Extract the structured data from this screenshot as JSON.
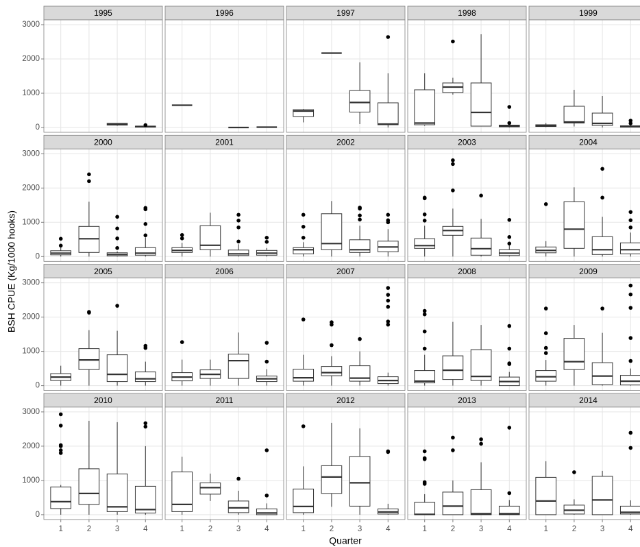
{
  "chart_data": {
    "type": "box",
    "ylabel": "BSH CPUE (Kg/1000 hooks)",
    "xlabel": "Quarter",
    "ylim": [
      -140,
      3140
    ],
    "yticks": [
      0,
      1000,
      2000,
      3000
    ],
    "xlim": [
      0.4,
      4.6
    ],
    "xticks": [
      1,
      2,
      3,
      4
    ],
    "grid": true,
    "color": "#333333",
    "panels": [
      {
        "title": "1995",
        "boxes": [
          {
            "x": 3,
            "low": 50,
            "q1": 70,
            "median": 100,
            "q3": 120,
            "high": 130
          },
          {
            "x": 4,
            "low": 0,
            "q1": 10,
            "median": 30,
            "q3": 40,
            "high": 50,
            "outliers": [
              70
            ]
          }
        ]
      },
      {
        "title": "1996",
        "boxes": [
          {
            "x": 1,
            "low": 650,
            "q1": 650,
            "median": 650,
            "q3": 650,
            "high": 650
          },
          {
            "x": 3,
            "low": 0,
            "q1": 0,
            "median": 0,
            "q3": 0,
            "high": 0
          },
          {
            "x": 4,
            "low": 10,
            "q1": 10,
            "median": 10,
            "q3": 10,
            "high": 10
          }
        ]
      },
      {
        "title": "1997",
        "boxes": [
          {
            "x": 1,
            "low": 150,
            "q1": 320,
            "median": 480,
            "q3": 520,
            "high": 540
          },
          {
            "x": 2,
            "low": 2170,
            "q1": 2170,
            "median": 2170,
            "q3": 2170,
            "high": 2170
          },
          {
            "x": 3,
            "low": 100,
            "q1": 450,
            "median": 730,
            "q3": 1080,
            "high": 1900
          },
          {
            "x": 4,
            "low": 0,
            "q1": 80,
            "median": 100,
            "q3": 720,
            "high": 1580,
            "outliers": [
              2640
            ]
          }
        ]
      },
      {
        "title": "1998",
        "boxes": [
          {
            "x": 1,
            "low": 50,
            "q1": 80,
            "median": 130,
            "q3": 1100,
            "high": 1580
          },
          {
            "x": 2,
            "low": 960,
            "q1": 1020,
            "median": 1180,
            "q3": 1300,
            "high": 1450,
            "outliers": [
              2510
            ]
          },
          {
            "x": 3,
            "low": 30,
            "q1": 40,
            "median": 440,
            "q3": 1300,
            "high": 2720
          },
          {
            "x": 4,
            "low": 0,
            "q1": 20,
            "median": 50,
            "q3": 70,
            "high": 100,
            "outliers": [
              130,
              600
            ]
          }
        ]
      },
      {
        "title": "1999",
        "boxes": [
          {
            "x": 1,
            "low": 10,
            "q1": 30,
            "median": 50,
            "q3": 80,
            "high": 130
          },
          {
            "x": 2,
            "low": 30,
            "q1": 130,
            "median": 160,
            "q3": 620,
            "high": 1100
          },
          {
            "x": 3,
            "low": 0,
            "q1": 60,
            "median": 120,
            "q3": 420,
            "high": 920
          },
          {
            "x": 4,
            "low": 0,
            "q1": 10,
            "median": 30,
            "q3": 50,
            "high": 80,
            "outliers": [
              120,
              200
            ]
          }
        ]
      },
      {
        "title": "2000",
        "boxes": [
          {
            "x": 1,
            "low": 0,
            "q1": 50,
            "median": 100,
            "q3": 170,
            "high": 300,
            "outliers": [
              320,
              520
            ]
          },
          {
            "x": 2,
            "low": 0,
            "q1": 120,
            "median": 520,
            "q3": 880,
            "high": 1600,
            "outliers": [
              2200,
              2400
            ]
          },
          {
            "x": 3,
            "low": 0,
            "q1": 20,
            "median": 60,
            "q3": 110,
            "high": 150,
            "outliers": [
              250,
              530,
              820,
              1160
            ]
          },
          {
            "x": 4,
            "low": 0,
            "q1": 40,
            "median": 100,
            "q3": 260,
            "high": 560,
            "outliers": [
              620,
              950,
              1380,
              1420
            ]
          }
        ]
      },
      {
        "title": "2001",
        "boxes": [
          {
            "x": 1,
            "low": 0,
            "q1": 120,
            "median": 180,
            "q3": 260,
            "high": 400,
            "outliers": [
              530,
              630
            ]
          },
          {
            "x": 2,
            "low": 0,
            "q1": 200,
            "median": 330,
            "q3": 900,
            "high": 1280
          },
          {
            "x": 3,
            "low": 0,
            "q1": 30,
            "median": 80,
            "q3": 190,
            "high": 360,
            "outliers": [
              440,
              850,
              1050,
              1220
            ]
          },
          {
            "x": 4,
            "low": 0,
            "q1": 40,
            "median": 100,
            "q3": 180,
            "high": 250,
            "outliers": [
              430,
              550
            ]
          }
        ]
      },
      {
        "title": "2002",
        "boxes": [
          {
            "x": 1,
            "low": 0,
            "q1": 80,
            "median": 200,
            "q3": 260,
            "high": 420,
            "outliers": [
              550,
              870,
              1220
            ]
          },
          {
            "x": 2,
            "low": 0,
            "q1": 200,
            "median": 380,
            "q3": 1250,
            "high": 1620
          },
          {
            "x": 3,
            "low": 0,
            "q1": 120,
            "median": 200,
            "q3": 490,
            "high": 900,
            "outliers": [
              1080,
              1200,
              1400,
              1430
            ]
          },
          {
            "x": 4,
            "low": 0,
            "q1": 140,
            "median": 280,
            "q3": 450,
            "high": 800,
            "outliers": [
              1000,
              1060,
              1220
            ]
          }
        ]
      },
      {
        "title": "2003",
        "boxes": [
          {
            "x": 1,
            "low": 0,
            "q1": 240,
            "median": 320,
            "q3": 520,
            "high": 900,
            "outliers": [
              1050,
              1230,
              1700,
              1720
            ]
          },
          {
            "x": 2,
            "low": 0,
            "q1": 620,
            "median": 760,
            "q3": 880,
            "high": 1400,
            "outliers": [
              1930,
              2700,
              2810
            ]
          },
          {
            "x": 3,
            "low": 0,
            "q1": 40,
            "median": 230,
            "q3": 540,
            "high": 1100,
            "outliers": [
              1780
            ]
          },
          {
            "x": 4,
            "low": 0,
            "q1": 30,
            "median": 100,
            "q3": 200,
            "high": 330,
            "outliers": [
              380,
              570,
              1070
            ]
          }
        ]
      },
      {
        "title": "2004",
        "boxes": [
          {
            "x": 1,
            "low": 0,
            "q1": 110,
            "median": 180,
            "q3": 280,
            "high": 450,
            "outliers": [
              1530
            ]
          },
          {
            "x": 2,
            "low": 0,
            "q1": 240,
            "median": 800,
            "q3": 1600,
            "high": 2020
          },
          {
            "x": 3,
            "low": 0,
            "q1": 60,
            "median": 200,
            "q3": 580,
            "high": 1160,
            "outliers": [
              1720,
              2560
            ]
          },
          {
            "x": 4,
            "low": 0,
            "q1": 80,
            "median": 200,
            "q3": 400,
            "high": 700,
            "outliers": [
              850,
              1060,
              1300
            ]
          }
        ]
      },
      {
        "title": "2005",
        "boxes": [
          {
            "x": 1,
            "low": 0,
            "q1": 150,
            "median": 250,
            "q3": 350,
            "high": 580
          },
          {
            "x": 2,
            "low": 0,
            "q1": 470,
            "median": 750,
            "q3": 1080,
            "high": 1620,
            "outliers": [
              2130,
              2150
            ]
          },
          {
            "x": 3,
            "low": 0,
            "q1": 120,
            "median": 330,
            "q3": 900,
            "high": 1600,
            "outliers": [
              2330
            ]
          },
          {
            "x": 4,
            "low": 0,
            "q1": 120,
            "median": 200,
            "q3": 400,
            "high": 700,
            "outliers": [
              1100,
              1160
            ]
          }
        ]
      },
      {
        "title": "2006",
        "boxes": [
          {
            "x": 1,
            "low": 0,
            "q1": 140,
            "median": 250,
            "q3": 380,
            "high": 760,
            "outliers": [
              1270
            ]
          },
          {
            "x": 2,
            "low": 0,
            "q1": 210,
            "median": 330,
            "q3": 460,
            "high": 760
          },
          {
            "x": 3,
            "low": 0,
            "q1": 210,
            "median": 730,
            "q3": 920,
            "high": 1550
          },
          {
            "x": 4,
            "low": 0,
            "q1": 120,
            "median": 200,
            "q3": 280,
            "high": 480,
            "outliers": [
              700,
              1250
            ]
          }
        ]
      },
      {
        "title": "2007",
        "boxes": [
          {
            "x": 1,
            "low": 0,
            "q1": 130,
            "median": 230,
            "q3": 480,
            "high": 900,
            "outliers": [
              1930
            ]
          },
          {
            "x": 2,
            "low": 0,
            "q1": 290,
            "median": 380,
            "q3": 560,
            "high": 860,
            "outliers": [
              1180,
              1780,
              1850
            ]
          },
          {
            "x": 3,
            "low": 0,
            "q1": 130,
            "median": 220,
            "q3": 580,
            "high": 1000,
            "outliers": [
              1360
            ]
          },
          {
            "x": 4,
            "low": 0,
            "q1": 60,
            "median": 150,
            "q3": 260,
            "high": 380,
            "outliers": [
              1780,
              1870,
              2300,
              2480,
              2650,
              2850
            ]
          }
        ]
      },
      {
        "title": "2008",
        "boxes": [
          {
            "x": 1,
            "low": 0,
            "q1": 80,
            "median": 130,
            "q3": 440,
            "high": 900,
            "outliers": [
              1080,
              1580,
              2080,
              2180
            ]
          },
          {
            "x": 2,
            "low": 0,
            "q1": 180,
            "median": 450,
            "q3": 870,
            "high": 1860
          },
          {
            "x": 3,
            "low": 0,
            "q1": 150,
            "median": 270,
            "q3": 1050,
            "high": 1770
          },
          {
            "x": 4,
            "low": 0,
            "q1": 0,
            "median": 120,
            "q3": 250,
            "high": 400,
            "outliers": [
              630,
              650,
              1080,
              1740
            ]
          }
        ]
      },
      {
        "title": "2009",
        "boxes": [
          {
            "x": 1,
            "low": 0,
            "q1": 130,
            "median": 260,
            "q3": 440,
            "high": 750,
            "outliers": [
              950,
              1100,
              1530,
              2250
            ]
          },
          {
            "x": 2,
            "low": 0,
            "q1": 470,
            "median": 700,
            "q3": 1380,
            "high": 1770
          },
          {
            "x": 3,
            "low": 0,
            "q1": 30,
            "median": 280,
            "q3": 670,
            "high": 1540,
            "outliers": [
              2250
            ]
          },
          {
            "x": 4,
            "low": 0,
            "q1": 20,
            "median": 130,
            "q3": 300,
            "high": 500,
            "outliers": [
              720,
              1390,
              2270,
              2660,
              2920
            ]
          }
        ]
      },
      {
        "title": "2010",
        "boxes": [
          {
            "x": 1,
            "low": 0,
            "q1": 180,
            "median": 380,
            "q3": 810,
            "high": 870,
            "outliers": [
              1800,
              1880,
              2000,
              2030,
              2600,
              2930
            ]
          },
          {
            "x": 2,
            "low": 0,
            "q1": 300,
            "median": 620,
            "q3": 1340,
            "high": 2740
          },
          {
            "x": 3,
            "low": 0,
            "q1": 90,
            "median": 230,
            "q3": 1190,
            "high": 2700
          },
          {
            "x": 4,
            "low": 0,
            "q1": 50,
            "median": 150,
            "q3": 830,
            "high": 2000,
            "outliers": [
              2570,
              2670
            ]
          }
        ]
      },
      {
        "title": "2011",
        "boxes": [
          {
            "x": 1,
            "low": 0,
            "q1": 90,
            "median": 300,
            "q3": 1250,
            "high": 1690
          },
          {
            "x": 2,
            "low": 400,
            "q1": 600,
            "median": 790,
            "q3": 930,
            "high": 1200
          },
          {
            "x": 3,
            "low": 0,
            "q1": 60,
            "median": 200,
            "q3": 400,
            "high": 700,
            "outliers": [
              1050
            ]
          },
          {
            "x": 4,
            "low": 0,
            "q1": 0,
            "median": 50,
            "q3": 170,
            "high": 330,
            "outliers": [
              560,
              1880
            ]
          }
        ]
      },
      {
        "title": "2012",
        "boxes": [
          {
            "x": 1,
            "low": 0,
            "q1": 60,
            "median": 240,
            "q3": 750,
            "high": 1410,
            "outliers": [
              2580
            ]
          },
          {
            "x": 2,
            "low": 230,
            "q1": 620,
            "median": 1100,
            "q3": 1430,
            "high": 2680
          },
          {
            "x": 3,
            "low": 0,
            "q1": 250,
            "median": 930,
            "q3": 1700,
            "high": 2520
          },
          {
            "x": 4,
            "low": 0,
            "q1": 20,
            "median": 80,
            "q3": 170,
            "high": 320,
            "outliers": [
              1830,
              1850
            ]
          }
        ]
      },
      {
        "title": "2013",
        "boxes": [
          {
            "x": 1,
            "low": 0,
            "q1": 0,
            "median": 10,
            "q3": 360,
            "high": 600,
            "outliers": [
              900,
              950,
              1620,
              1650,
              1850
            ]
          },
          {
            "x": 2,
            "low": 0,
            "q1": 0,
            "median": 250,
            "q3": 660,
            "high": 1000,
            "outliers": [
              1880,
              2250
            ]
          },
          {
            "x": 3,
            "low": 0,
            "q1": 0,
            "median": 30,
            "q3": 730,
            "high": 1530,
            "outliers": [
              2070,
              2200
            ]
          },
          {
            "x": 4,
            "low": 0,
            "q1": 0,
            "median": 30,
            "q3": 250,
            "high": 430,
            "outliers": [
              630,
              2540
            ]
          }
        ]
      },
      {
        "title": "2014",
        "boxes": [
          {
            "x": 1,
            "low": 0,
            "q1": 0,
            "median": 400,
            "q3": 1090,
            "high": 1560
          },
          {
            "x": 2,
            "low": 0,
            "q1": 20,
            "median": 130,
            "q3": 280,
            "high": 450,
            "outliers": [
              1240
            ]
          },
          {
            "x": 3,
            "low": 0,
            "q1": 0,
            "median": 430,
            "q3": 1120,
            "high": 1280
          },
          {
            "x": 4,
            "low": 0,
            "q1": 20,
            "median": 70,
            "q3": 250,
            "high": 420,
            "outliers": [
              1950,
              2390
            ]
          }
        ]
      }
    ]
  }
}
